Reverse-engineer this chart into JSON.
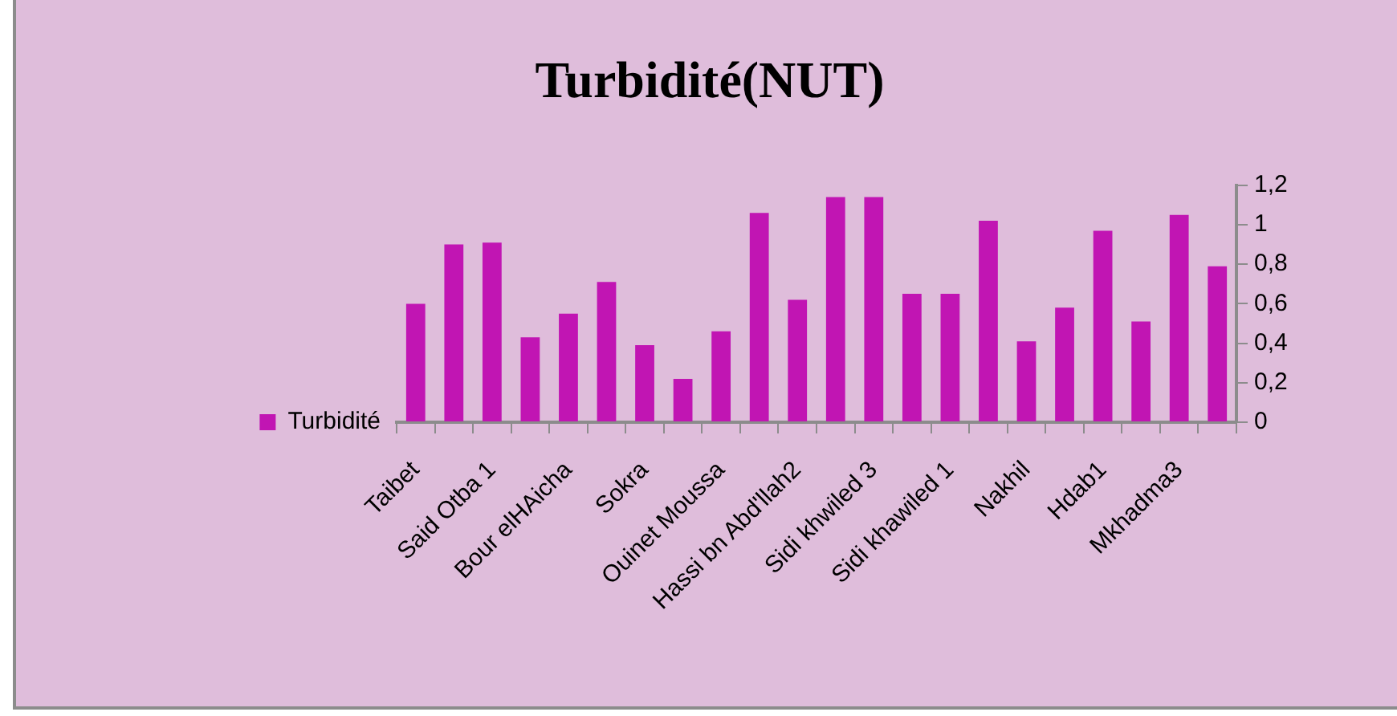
{
  "chart_data": {
    "type": "bar",
    "title": "Turbidité(NUT)",
    "categories": [
      "Taibet",
      null,
      "Said Otba 1",
      null,
      "Bour elHAicha",
      null,
      "Sokra",
      null,
      "Ouinet Moussa",
      null,
      "Hassi bn Abd'llah2",
      null,
      "Sidi khwiled 3",
      null,
      "Sidi khawiled 1",
      null,
      "Nakhil",
      null,
      "Hdab1",
      null,
      "Mkhadma3",
      null
    ],
    "series": [
      {
        "name": "Turbidité",
        "color": "#c115b3",
        "values": [
          0.6,
          0.9,
          0.91,
          0.43,
          0.55,
          0.71,
          0.39,
          0.22,
          0.46,
          1.06,
          0.62,
          1.14,
          1.14,
          0.65,
          0.65,
          1.02,
          0.41,
          0.58,
          0.97,
          0.51,
          1.05,
          0.79
        ]
      }
    ],
    "ylim": [
      0,
      1.2
    ],
    "yticks": [
      0,
      {
        "value": 0.2,
        "label": "0,2"
      },
      {
        "value": 0.4,
        "label": "0,4"
      },
      {
        "value": 0.6,
        "label": "0,6"
      },
      {
        "value": 0.8,
        "label": "0,8"
      },
      1,
      {
        "value": 1.2,
        "label": "1,2"
      }
    ],
    "grid": false,
    "legend": "left"
  }
}
